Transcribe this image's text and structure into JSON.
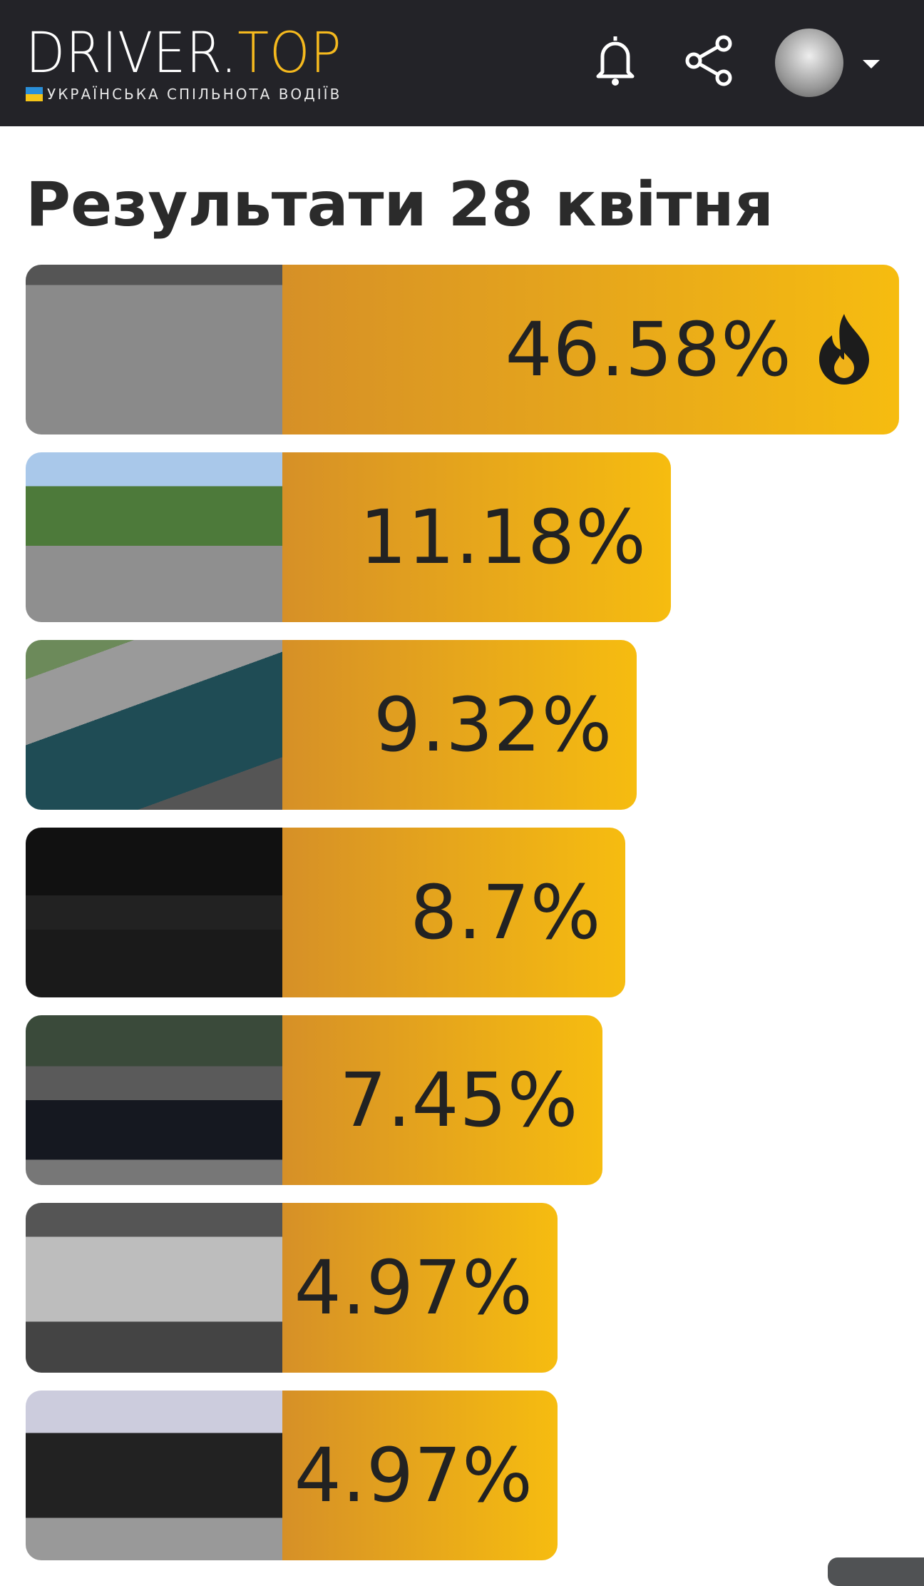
{
  "header": {
    "logo_main": "DRIVER.",
    "logo_accent": "TOP",
    "logo_sub": "УКРАЇНСЬКА СПІЛЬНОТА ВОДІЇВ",
    "icons": [
      "bell-icon",
      "share-icon",
      "avatar",
      "caret-down-icon"
    ],
    "accent": "#f5b91e",
    "bg": "#232328"
  },
  "page": {
    "title": "Результати 28 квітня"
  },
  "results": [
    {
      "value": 46.58,
      "label": "46.58%",
      "hot": true,
      "photo": "white hatchback on track"
    },
    {
      "value": 11.18,
      "label": "11.18%",
      "photo": "silver SUV"
    },
    {
      "value": 9.32,
      "label": "9.32%",
      "photo": "teal SUV"
    },
    {
      "value": 8.7,
      "label": "8.7%",
      "photo": "dark sedan rear at night"
    },
    {
      "value": 7.45,
      "label": "7.45%",
      "photo": "black sedan at gas station"
    },
    {
      "value": 4.97,
      "label": "4.97%",
      "photo": "silver compact car"
    },
    {
      "value": 4.97,
      "label": "4.97%",
      "photo": "black SUV"
    }
  ],
  "colors": {
    "gradient_start": "#d69027",
    "gradient_end": "#f6bc10"
  }
}
